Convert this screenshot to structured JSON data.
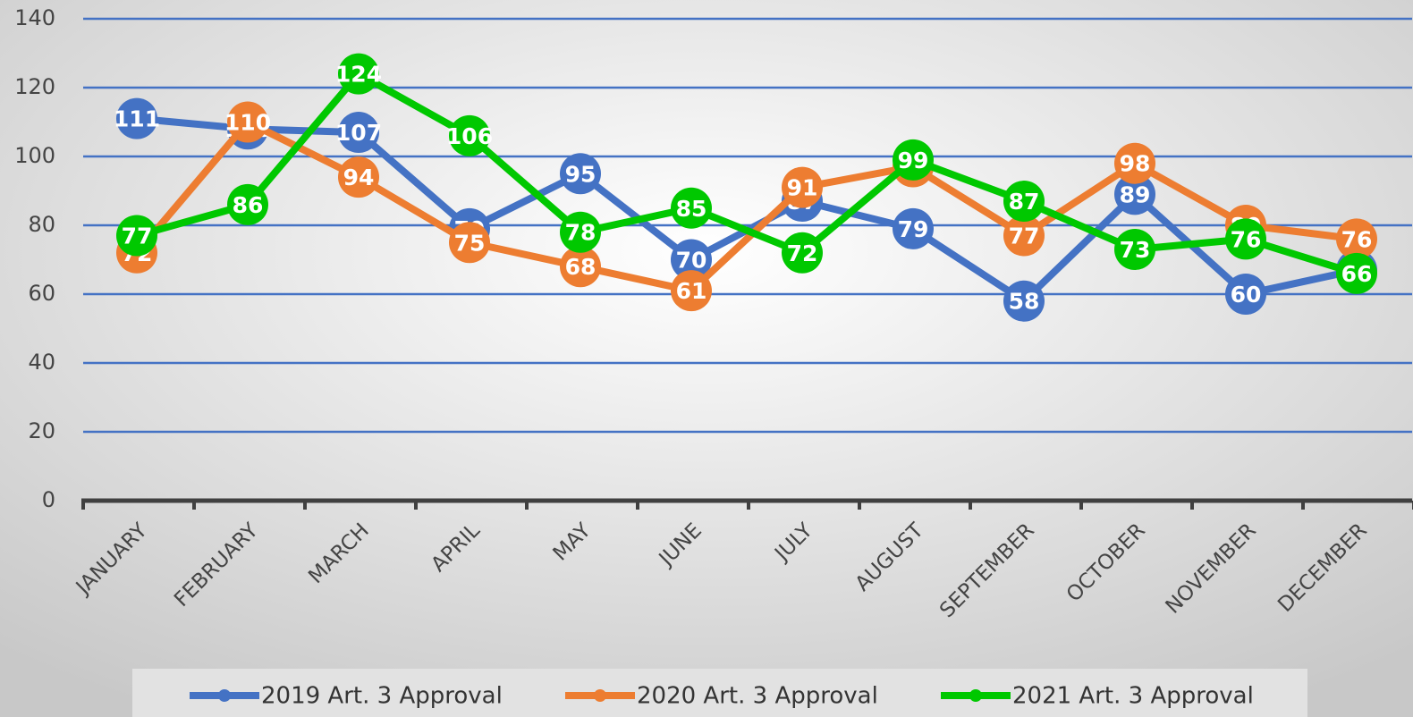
{
  "chart_data": {
    "type": "line",
    "categories": [
      "JANUARY",
      "FEBRUARY",
      "MARCH",
      "APRIL",
      "MAY",
      "JUNE",
      "JULY",
      "AUGUST",
      "SEPTEMBER",
      "OCTOBER",
      "NOVEMBER",
      "DECEMBER"
    ],
    "series": [
      {
        "name": "2019 Art. 3 Approval",
        "color": "#4472c4",
        "values": [
          111,
          108,
          107,
          79,
          95,
          70,
          87,
          79,
          58,
          89,
          60,
          67
        ]
      },
      {
        "name": "2020 Art. 3 Approval",
        "color": "#ed7d31",
        "values": [
          72,
          110,
          94,
          75,
          68,
          61,
          91,
          97,
          77,
          98,
          80,
          76
        ]
      },
      {
        "name": "2021 Art. 3 Approval",
        "color": "#00c800",
        "values": [
          77,
          86,
          124,
          106,
          78,
          85,
          72,
          99,
          87,
          73,
          76,
          66
        ]
      }
    ],
    "ylim": [
      0,
      140
    ],
    "yticks": [
      0,
      20,
      40,
      60,
      80,
      100,
      120,
      140
    ],
    "grid": true,
    "legend": "bottom"
  }
}
